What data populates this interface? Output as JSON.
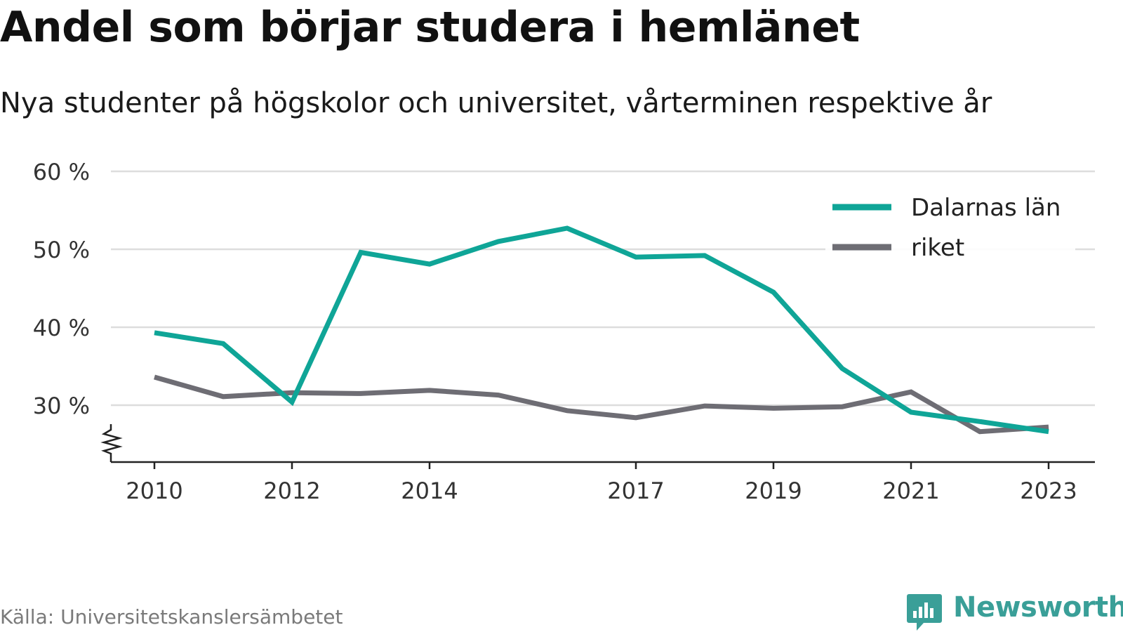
{
  "header": {
    "title": "Andel som börjar studera i hemlänet",
    "subtitle": "Nya studenter på högskolor och universitet, vårterminen respektive år"
  },
  "footer": {
    "source": "Källa: Universitetskanslersämbetet",
    "brand": "Newsworthy",
    "brand_icon": "bar-chart-speech-bubble-icon",
    "brand_color": "#3a9f98"
  },
  "chart_data": {
    "type": "line",
    "x": [
      2010,
      2011,
      2012,
      2013,
      2014,
      2015,
      2016,
      2017,
      2018,
      2019,
      2020,
      2021,
      2022,
      2023
    ],
    "x_tick_labels": [
      "2010",
      "2012",
      "2014",
      "2017",
      "2019",
      "2021",
      "2023"
    ],
    "y_tick_labels": [
      "30 %",
      "40 %",
      "50 %",
      "60 %"
    ],
    "y_ticks": [
      30,
      40,
      50,
      60
    ],
    "ylim": [
      23,
      60
    ],
    "y_axis_break": true,
    "grid": true,
    "legend_position": "top-right",
    "series": [
      {
        "name": "Dalarnas län",
        "color": "#0fa597",
        "values": [
          39.3,
          37.9,
          30.4,
          49.6,
          48.1,
          51.0,
          52.7,
          49.0,
          49.2,
          44.5,
          34.7,
          29.1,
          27.9,
          26.6
        ]
      },
      {
        "name": "riket",
        "color": "#6e6d74",
        "values": [
          33.6,
          31.1,
          31.6,
          31.5,
          31.9,
          31.3,
          29.3,
          28.4,
          29.9,
          29.6,
          29.8,
          31.7,
          26.6,
          27.2
        ]
      }
    ]
  }
}
